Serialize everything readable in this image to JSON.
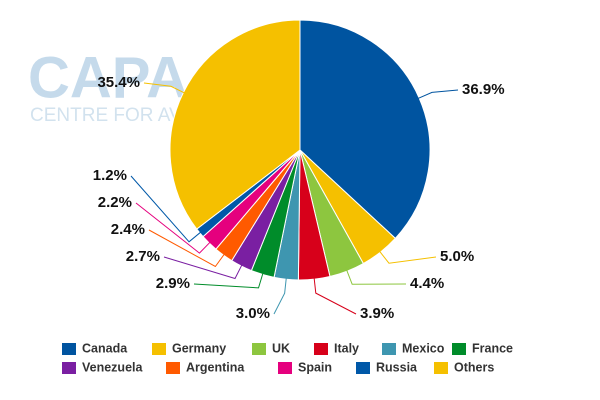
{
  "chart_data": {
    "type": "pie",
    "watermark": {
      "logo": "CAPA",
      "text": "CENTRE FOR AVIATION"
    },
    "categories": [
      "Canada",
      "Germany",
      "UK",
      "Italy",
      "Mexico",
      "France",
      "Venezuela",
      "Argentina",
      "Spain",
      "Russia",
      "Others"
    ],
    "values": [
      36.9,
      5.0,
      4.4,
      3.9,
      3.0,
      2.9,
      2.7,
      2.4,
      2.2,
      1.2,
      35.4
    ],
    "value_labels": [
      "36.9%",
      "5.0%",
      "4.4%",
      "3.9%",
      "3.0%",
      "2.9%",
      "2.7%",
      "2.4%",
      "2.2%",
      "1.2%",
      "35.4%"
    ],
    "colors": [
      "#0054a0",
      "#f5c000",
      "#8dc63f",
      "#d7001a",
      "#3e96b0",
      "#008c2a",
      "#7a1fa2",
      "#ff5a00",
      "#e5007e",
      "#0058a8",
      "#f5c000"
    ]
  }
}
